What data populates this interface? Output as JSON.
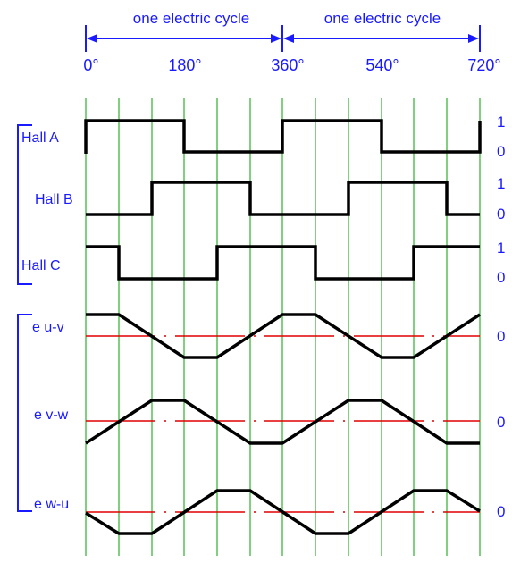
{
  "header": {
    "cycle_labels": [
      "one electric cycle",
      "one electric cycle"
    ],
    "degree_labels": [
      "0°",
      "180°",
      "360°",
      "540°",
      "720°"
    ]
  },
  "signals": {
    "hall_a": {
      "label": "Hall A",
      "high_label": "1",
      "low_label": "0"
    },
    "hall_b": {
      "label": "Hall B",
      "high_label": "1",
      "low_label": "0"
    },
    "hall_c": {
      "label": "Hall C",
      "high_label": "1",
      "low_label": "0"
    },
    "e_uv": {
      "label": "e u-v",
      "zero_label": "0"
    },
    "e_vw": {
      "label": "e v-w",
      "zero_label": "0"
    },
    "e_wu": {
      "label": "e w-u",
      "zero_label": "0"
    }
  },
  "colors": {
    "label_blue": "#1a1aff",
    "grid_green": "#00a000",
    "zero_red": "#e00000",
    "wave_black": "#000000"
  }
}
